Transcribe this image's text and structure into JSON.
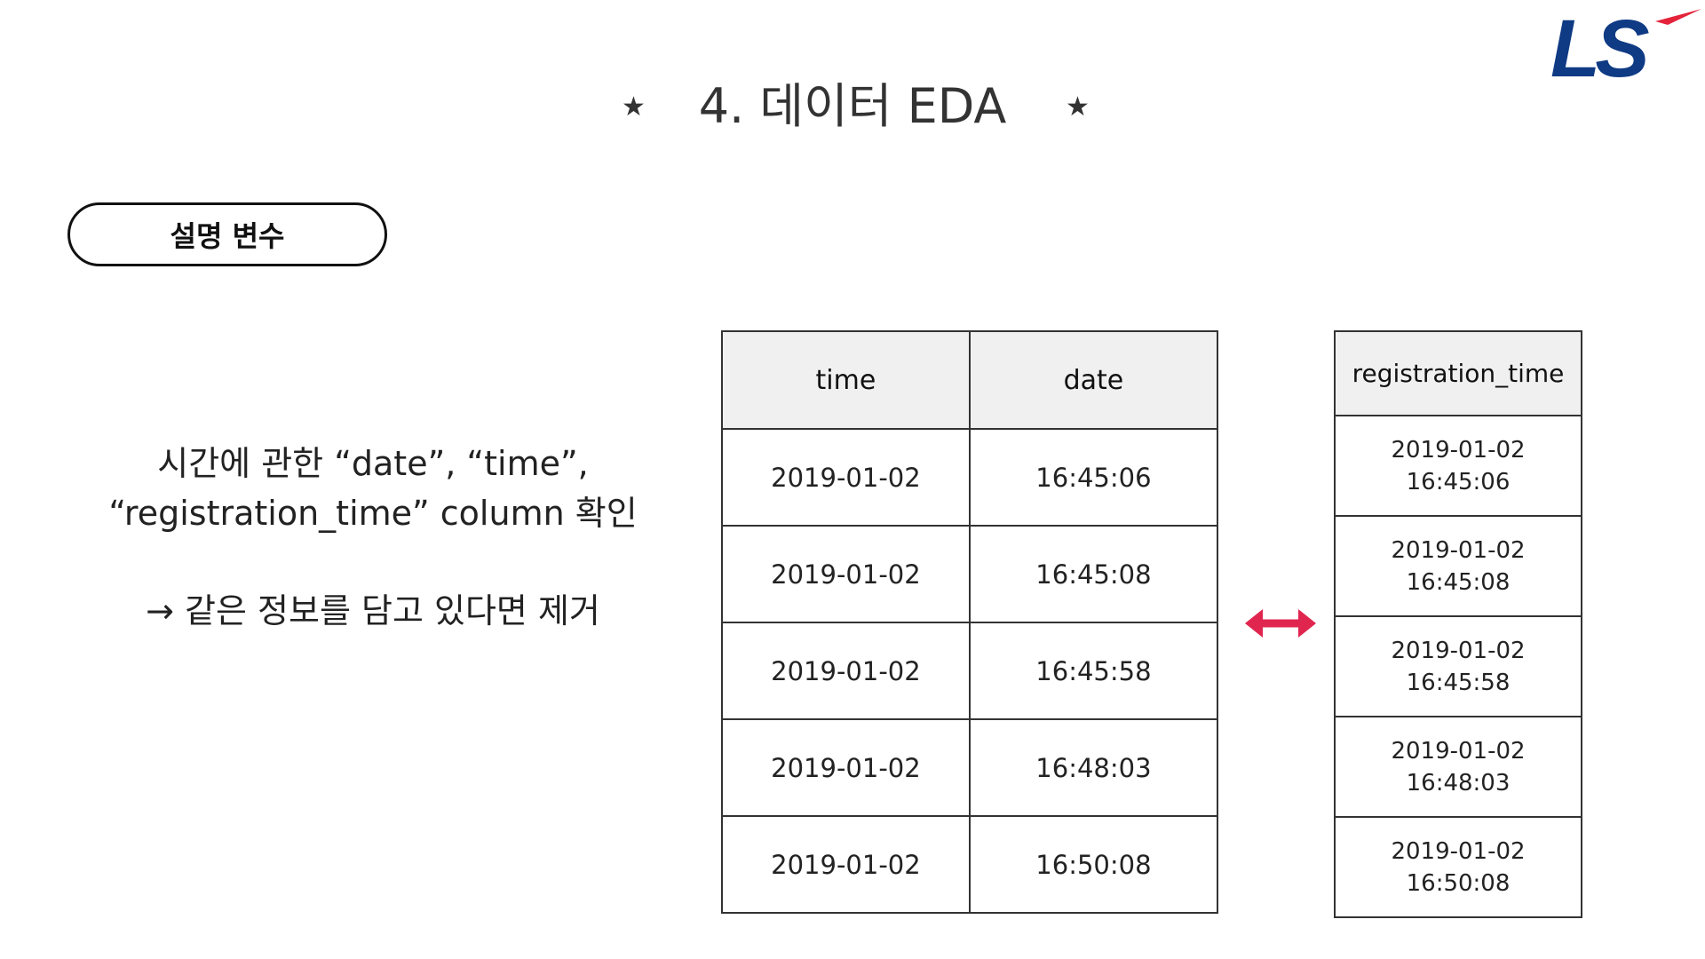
{
  "logo": {
    "text": "LS",
    "colors": {
      "navy": "#0f3a84",
      "red": "#e4233a"
    }
  },
  "title": {
    "star_left": "★",
    "main": "4. 데이터 EDA",
    "star_right": "★"
  },
  "section_label": "설명 변수",
  "description": {
    "line1": "시간에 관한 “date”, “time”,",
    "line2": "“registration_time” column 확인",
    "line3": "→ 같은 정보를 담고 있다면 제거"
  },
  "left_table": {
    "headers": [
      "time",
      "date"
    ],
    "rows": [
      [
        "2019-01-02",
        "16:45:06"
      ],
      [
        "2019-01-02",
        "16:45:08"
      ],
      [
        "2019-01-02",
        "16:45:58"
      ],
      [
        "2019-01-02",
        "16:48:03"
      ],
      [
        "2019-01-02",
        "16:50:08"
      ]
    ]
  },
  "arrow": {
    "icon": "double-arrow-icon",
    "color": "#e0264f"
  },
  "right_table": {
    "header": "registration_time",
    "rows": [
      {
        "date": "2019-01-02",
        "time": "16:45:06"
      },
      {
        "date": "2019-01-02",
        "time": "16:45:08"
      },
      {
        "date": "2019-01-02",
        "time": "16:45:58"
      },
      {
        "date": "2019-01-02",
        "time": "16:48:03"
      },
      {
        "date": "2019-01-02",
        "time": "16:50:08"
      }
    ]
  },
  "colors": {
    "header_bg": "#f0f0f0",
    "border": "#333333",
    "text": "#222222"
  }
}
